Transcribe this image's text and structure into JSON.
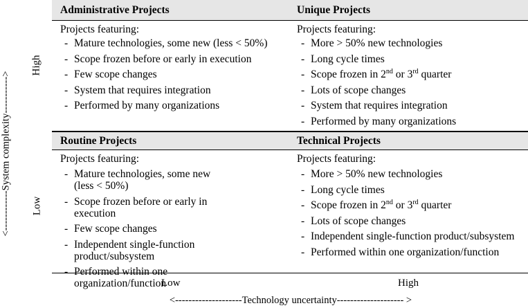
{
  "quadrants": {
    "administrative": {
      "title": "Administrative Projects",
      "intro": "Projects featuring:",
      "items": [
        "Mature technologies, some new (less < 50%)",
        "Scope frozen before or early in execution",
        "Few scope changes",
        "System that requires integration",
        "Performed by many organizations"
      ]
    },
    "unique": {
      "title": "Unique Projects",
      "intro": "Projects featuring:",
      "items": [
        "More > 50% new technologies",
        "Long cycle times",
        "Scope frozen in 2nd or 3rd quarter",
        "Lots of scope changes",
        "System that requires integration",
        "Performed by many organizations"
      ]
    },
    "routine": {
      "title": "Routine Projects",
      "intro": "Projects featuring:",
      "items": [
        "Mature technologies, some new (less < 50%)",
        "Scope frozen before or early in execution",
        "Few scope changes",
        "Independent single-function product/subsystem",
        "Performed within one organization/function"
      ]
    },
    "technical": {
      "title": "Technical Projects",
      "intro": "Projects featuring:",
      "items": [
        "More > 50% new technologies",
        "Long cycle times",
        "Scope frozen in 2nd or 3rd quarter",
        "Lots of scope changes",
        "Independent single-function product/subsystem",
        "Performed within one organization/function"
      ]
    }
  },
  "axes": {
    "y_title": "<------------System complexity----------->",
    "y_high": "High",
    "y_low": "Low",
    "x_title": "<--------------------Technology uncertainty-------------------- >",
    "x_low": "Low",
    "x_high": "High"
  }
}
